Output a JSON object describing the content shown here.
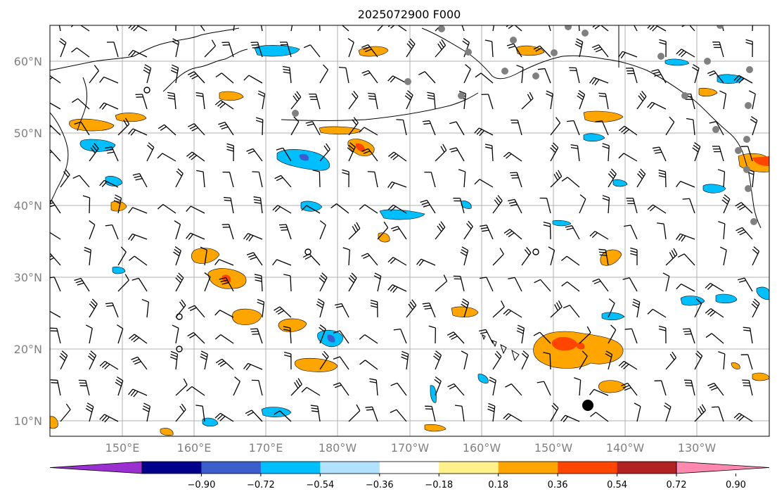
{
  "title": "2025072900 F000",
  "map": {
    "lat_labels": [
      "60°N",
      "50°N",
      "40°N",
      "30°N",
      "20°N",
      "10°N"
    ],
    "lon_labels": [
      "150°E",
      "160°E",
      "170°E",
      "180°W",
      "170°W",
      "160°W",
      "150°W",
      "140°W",
      "130°W"
    ],
    "colors": {
      "land_outline": "#000000",
      "gridline": "#b0b0b0",
      "barb": "#000000",
      "station": "#808080"
    }
  },
  "colorbar": {
    "colors": [
      "#9b30d0",
      "#00008b",
      "#3a5fcd",
      "#00bfff",
      "#b0e2ff",
      "#ffffff",
      "#fff08a",
      "#ffa500",
      "#ff4500",
      "#b22222",
      "#ff88b0"
    ],
    "ticks": [
      "−0.90",
      "−0.72",
      "−0.54",
      "−0.36",
      "−0.18",
      "0.18",
      "0.36",
      "0.54",
      "0.72",
      "0.90"
    ]
  }
}
